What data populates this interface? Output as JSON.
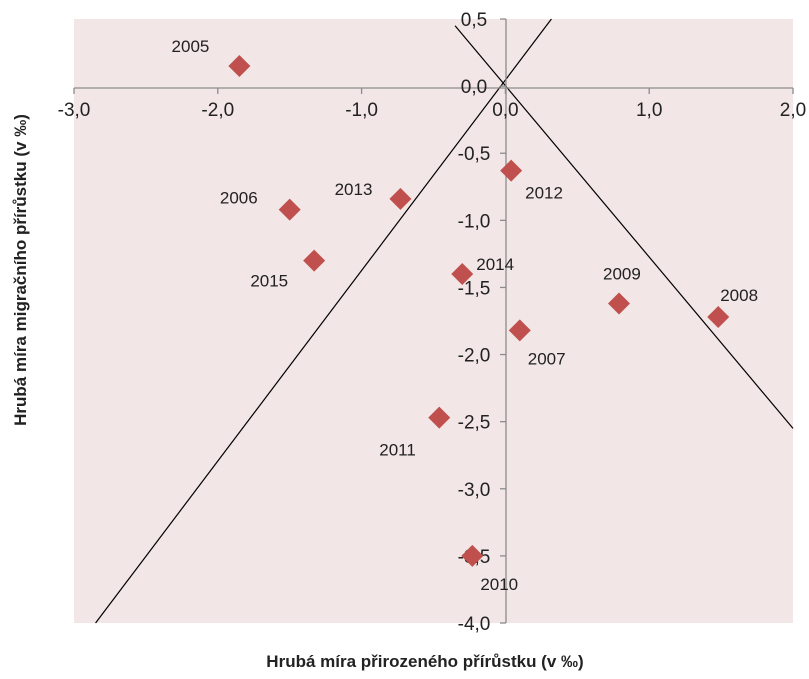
{
  "chart_data": {
    "type": "scatter",
    "xlabel": "Hrubá míra přirozeného přírůstku (v ‰)",
    "ylabel": "Hrubá míra migračního přírůstku (v ‰)",
    "xlim": [
      -3.0,
      2.0
    ],
    "ylim": [
      -4.0,
      0.5
    ],
    "x_ticks": [
      "-3,0",
      "-2,0",
      "-1,0",
      "0,0",
      "1,0",
      "2,0"
    ],
    "y_ticks": [
      "0,5",
      "0,0",
      "-0,5",
      "-1,0",
      "-1,5",
      "-2,0",
      "-2,5",
      "-3,0",
      "-3,5",
      "-4,0"
    ],
    "marker_color": "#c0504d",
    "plot_background": "#f2e6e6",
    "points": [
      {
        "label": "2005",
        "x": -1.85,
        "y": 0.15
      },
      {
        "label": "2006",
        "x": -1.5,
        "y": -0.92
      },
      {
        "label": "2007",
        "x": 0.1,
        "y": -1.82
      },
      {
        "label": "2008",
        "x": 1.48,
        "y": -1.72
      },
      {
        "label": "2009",
        "x": 0.79,
        "y": -1.62
      },
      {
        "label": "2010",
        "x": -0.23,
        "y": -3.5
      },
      {
        "label": "2011",
        "x": -0.46,
        "y": -2.47
      },
      {
        "label": "2012",
        "x": 0.04,
        "y": -0.63
      },
      {
        "label": "2013",
        "x": -0.73,
        "y": -0.84
      },
      {
        "label": "2014",
        "x": -0.3,
        "y": -1.4
      },
      {
        "label": "2015",
        "x": -1.33,
        "y": -1.3
      }
    ],
    "reference_lines": [
      {
        "x": [
          -2.85,
          0.32
        ],
        "y": [
          -4.0,
          0.5
        ]
      },
      {
        "x": [
          -0.35,
          2.0
        ],
        "y": [
          0.45,
          -2.55
        ]
      }
    ]
  }
}
